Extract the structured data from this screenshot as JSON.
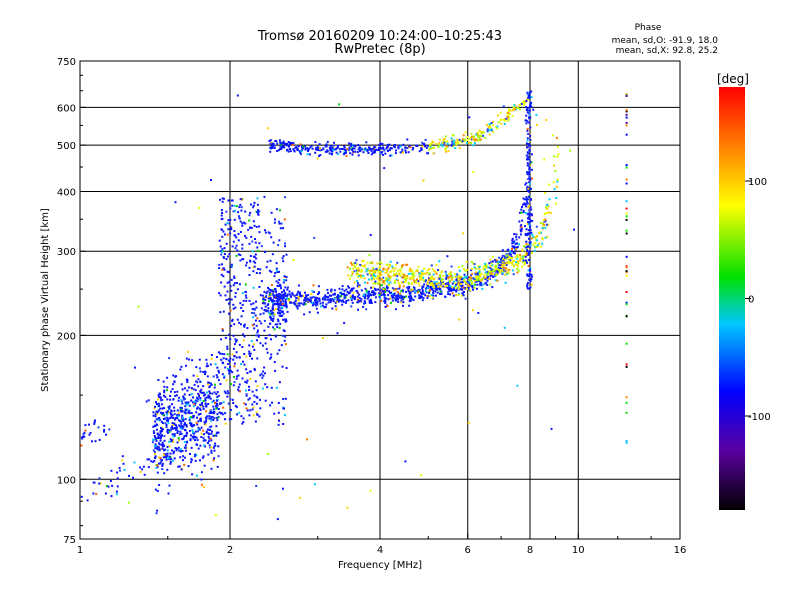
{
  "header": {
    "title_line1": "Tromsø 20160209 10:24:00–10:25:43",
    "title_line2": "RwPretec (8p)",
    "phase_title": "Phase",
    "phase_o": "mean, sd,O: -91.9, 18.0",
    "phase_x": "mean, sd,X:  92.8, 25.2"
  },
  "chart_data": {
    "type": "scatter",
    "title": "Tromsø 20160209 10:24:00–10:25:43",
    "subtitle": "RwPretec (8p)",
    "xlabel": "Frequency [MHz]",
    "ylabel": "Stationary phase Virtual Height [km]",
    "xscale": "log2",
    "yscale": "log",
    "xlim": [
      1,
      16
    ],
    "ylim": [
      75,
      750
    ],
    "xticks": [
      1,
      2,
      4,
      6,
      8,
      10,
      16
    ],
    "xtick_labels": [
      "1",
      "2",
      "4",
      "6",
      "8",
      "10",
      "16"
    ],
    "yticks": [
      75,
      100,
      200,
      300,
      400,
      500,
      600,
      750
    ],
    "ytick_labels": [
      "75",
      "100",
      "200",
      "300",
      "400",
      "500",
      "600",
      "750"
    ],
    "grid": true,
    "colorbar": {
      "label": "[deg]",
      "min": -180,
      "max": 180,
      "ticks": [
        100,
        0,
        -100
      ],
      "tick_labels": [
        "100",
        "0",
        "-100"
      ],
      "colors": [
        "#000000",
        "#5a00a0",
        "#0000ff",
        "#00c8ff",
        "#00e000",
        "#ffff00",
        "#ff8000",
        "#ff0000"
      ]
    },
    "series": [
      {
        "trace": "low_E_echoes",
        "points": [
          [
            1.0,
            125
          ],
          [
            1.05,
            122
          ],
          [
            1.1,
            128
          ],
          [
            1.0,
            95
          ],
          [
            1.1,
            97
          ],
          [
            1.2,
            100
          ],
          [
            1.3,
            106
          ],
          [
            1.35,
            105
          ],
          [
            1.4,
            108
          ],
          [
            1.5,
            110
          ],
          [
            1.6,
            114
          ]
        ]
      },
      {
        "trace": "F_spread",
        "points": [
          [
            1.4,
            130
          ],
          [
            1.5,
            140
          ],
          [
            1.6,
            150
          ],
          [
            1.7,
            155
          ],
          [
            1.8,
            145
          ],
          [
            1.9,
            170
          ],
          [
            2.0,
            200
          ],
          [
            2.0,
            260
          ],
          [
            2.05,
            330
          ],
          [
            2.1,
            380
          ],
          [
            2.2,
            300
          ],
          [
            2.3,
            260
          ],
          [
            2.4,
            250
          ]
        ]
      },
      {
        "trace": "F_O_mode",
        "points": [
          [
            2.4,
            240
          ],
          [
            3.0,
            238
          ],
          [
            3.5,
            240
          ],
          [
            4.0,
            242
          ],
          [
            5.0,
            248
          ],
          [
            6.0,
            255
          ],
          [
            6.5,
            265
          ],
          [
            7.0,
            280
          ],
          [
            7.5,
            310
          ],
          [
            7.8,
            360
          ],
          [
            8.0,
            420
          ],
          [
            8.1,
            500
          ],
          [
            8.2,
            600
          ]
        ]
      },
      {
        "trace": "F_X_mode",
        "points": [
          [
            3.5,
            275
          ],
          [
            4.5,
            265
          ],
          [
            5.5,
            262
          ],
          [
            6.5,
            270
          ],
          [
            7.5,
            285
          ],
          [
            8.0,
            300
          ],
          [
            8.5,
            330
          ],
          [
            8.8,
            380
          ],
          [
            9.0,
            450
          ],
          [
            9.1,
            520
          ]
        ]
      },
      {
        "trace": "multihop",
        "points": [
          [
            2.4,
            500
          ],
          [
            3.0,
            490
          ],
          [
            4.0,
            488
          ],
          [
            5.0,
            495
          ],
          [
            6.0,
            510
          ],
          [
            6.5,
            530
          ],
          [
            7.0,
            560
          ],
          [
            7.5,
            600
          ],
          [
            8.0,
            630
          ]
        ]
      }
    ]
  }
}
